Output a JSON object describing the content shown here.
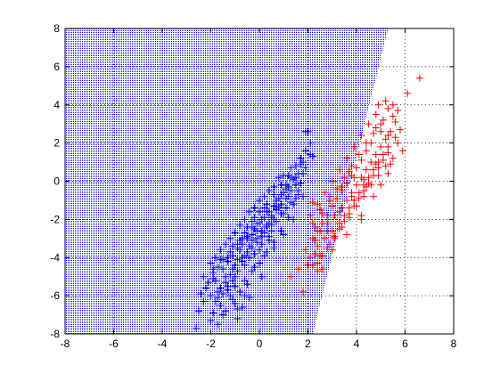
{
  "chart_data": {
    "type": "scatter",
    "title": "",
    "xlabel": "",
    "ylabel": "",
    "xlim": [
      -8,
      8
    ],
    "ylim": [
      -8,
      8
    ],
    "x_ticks": [
      -8,
      -6,
      -4,
      -2,
      0,
      2,
      4,
      6,
      8
    ],
    "y_ticks": [
      -8,
      -6,
      -4,
      -2,
      0,
      2,
      4,
      6,
      8
    ],
    "grid": true,
    "marker": "+",
    "decision_boundary": {
      "points": [
        [
          2.2,
          -7.9
        ],
        [
          5.3,
          8.0
        ]
      ],
      "region_fill": "blue-dotted",
      "region_side": "left"
    },
    "series": [
      {
        "color": "#0000ff",
        "points": [
          [
            -1.8,
            -5.2
          ],
          [
            -1.6,
            -5.6
          ],
          [
            -1.4,
            -5.0
          ],
          [
            -1.5,
            -4.6
          ],
          [
            -1.2,
            -4.9
          ],
          [
            -1.0,
            -4.4
          ],
          [
            -1.1,
            -3.9
          ],
          [
            -0.9,
            -4.1
          ],
          [
            -0.8,
            -3.6
          ],
          [
            -0.6,
            -3.9
          ],
          [
            -0.7,
            -3.3
          ],
          [
            -0.5,
            -3.0
          ],
          [
            -0.4,
            -3.4
          ],
          [
            -0.3,
            -2.8
          ],
          [
            -0.2,
            -2.5
          ],
          [
            -0.1,
            -3.0
          ],
          [
            0.0,
            -2.2
          ],
          [
            0.1,
            -2.6
          ],
          [
            0.2,
            -1.9
          ],
          [
            0.3,
            -2.3
          ],
          [
            0.4,
            -1.6
          ],
          [
            0.5,
            -1.9
          ],
          [
            0.6,
            -1.3
          ],
          [
            0.7,
            -1.5
          ],
          [
            0.8,
            -0.9
          ],
          [
            0.9,
            -1.2
          ],
          [
            1.0,
            -0.6
          ],
          [
            1.1,
            -0.9
          ],
          [
            1.2,
            -0.3
          ],
          [
            1.3,
            -0.5
          ],
          [
            1.4,
            0.1
          ],
          [
            1.5,
            -0.2
          ],
          [
            1.6,
            0.4
          ],
          [
            1.7,
            0.9
          ],
          [
            2.0,
            2.6
          ],
          [
            1.9,
            1.6
          ],
          [
            2.1,
            1.4
          ],
          [
            1.8,
            1.0
          ],
          [
            -1.3,
            -4.2
          ],
          [
            -0.9,
            -3.3
          ],
          [
            -0.6,
            -2.7
          ],
          [
            -0.3,
            -2.1
          ],
          [
            0.0,
            -1.6
          ],
          [
            0.3,
            -1.2
          ],
          [
            0.6,
            -0.7
          ],
          [
            0.9,
            -0.2
          ],
          [
            1.2,
            0.3
          ],
          [
            -1.9,
            -4.8
          ],
          [
            -1.6,
            -4.1
          ],
          [
            -1.2,
            -3.7
          ],
          [
            -0.8,
            -3.1
          ],
          [
            -0.5,
            -2.4
          ],
          [
            -0.2,
            -1.9
          ],
          [
            0.2,
            -1.4
          ],
          [
            0.5,
            -2.6
          ],
          [
            0.1,
            -3.3
          ],
          [
            -0.2,
            -3.8
          ],
          [
            -0.6,
            -4.4
          ],
          [
            -1.0,
            -5.0
          ],
          [
            0.4,
            -2.9
          ],
          [
            0.7,
            -2.1
          ],
          [
            1.0,
            -1.7
          ],
          [
            -2.6,
            -7.7
          ],
          [
            -2.0,
            -7.3
          ],
          [
            -1.9,
            -6.9
          ],
          [
            -1.5,
            -7.0
          ],
          [
            -0.7,
            -6.6
          ],
          [
            -1.1,
            -6.2
          ],
          [
            -0.8,
            -5.8
          ],
          [
            -0.5,
            -5.4
          ],
          [
            -2.0,
            -6.0
          ],
          [
            -2.2,
            -5.6
          ],
          [
            -1.7,
            -6.1
          ],
          [
            -1.3,
            -5.7
          ],
          [
            -0.4,
            -6.1
          ],
          [
            -0.9,
            -6.7
          ],
          [
            -1.6,
            -6.5
          ],
          [
            -2.1,
            -5.3
          ],
          [
            -1.7,
            -5.8
          ],
          [
            -1.0,
            -5.5
          ],
          [
            -1.4,
            -5.3
          ],
          [
            -0.3,
            -4.7
          ],
          [
            0.0,
            -4.3
          ],
          [
            0.3,
            -3.7
          ],
          [
            0.6,
            -3.2
          ],
          [
            0.9,
            -2.6
          ],
          [
            1.2,
            -1.9
          ],
          [
            1.4,
            -1.2
          ],
          [
            1.6,
            -0.7
          ],
          [
            1.7,
            -0.1
          ],
          [
            0.8,
            0.2
          ],
          [
            0.4,
            -0.5
          ],
          [
            0.0,
            -1.0
          ],
          [
            -0.4,
            -1.6
          ],
          [
            -0.8,
            -2.3
          ],
          [
            -1.2,
            -3.0
          ],
          [
            -1.6,
            -3.6
          ],
          [
            -2.0,
            -4.3
          ],
          [
            -1.8,
            -4.0
          ],
          [
            -1.4,
            -3.3
          ],
          [
            -1.0,
            -2.7
          ],
          [
            -0.6,
            -2.0
          ],
          [
            -0.2,
            -1.4
          ],
          [
            0.2,
            -0.8
          ],
          [
            0.6,
            -0.3
          ],
          [
            1.0,
            0.3
          ],
          [
            1.3,
            0.7
          ],
          [
            1.5,
            0.2
          ],
          [
            1.1,
            -0.4
          ],
          [
            0.7,
            -1.0
          ],
          [
            0.3,
            -1.6
          ],
          [
            -0.1,
            -2.2
          ],
          [
            -0.5,
            -2.9
          ],
          [
            -0.9,
            -3.5
          ],
          [
            -1.3,
            -4.0
          ],
          [
            -1.7,
            -4.5
          ],
          [
            -1.1,
            -4.6
          ],
          [
            -0.7,
            -4.0
          ],
          [
            -0.3,
            -3.5
          ],
          [
            0.1,
            -2.9
          ],
          [
            0.5,
            -2.3
          ],
          [
            0.9,
            -1.7
          ],
          [
            1.3,
            -1.1
          ],
          [
            1.6,
            -0.5
          ],
          [
            1.8,
            0.4
          ],
          [
            1.9,
            0.7
          ],
          [
            2.2,
            1.3
          ],
          [
            2.1,
            2.0
          ],
          [
            1.9,
            2.6
          ],
          [
            1.7,
            1.2
          ],
          [
            1.5,
            0.8
          ],
          [
            1.3,
            0.2
          ],
          [
            1.1,
            -0.2
          ],
          [
            0.9,
            -0.7
          ],
          [
            0.7,
            -1.3
          ],
          [
            0.5,
            -1.8
          ],
          [
            0.3,
            -2.4
          ],
          [
            0.1,
            -2.0
          ],
          [
            -0.1,
            -2.6
          ],
          [
            -0.3,
            -3.1
          ],
          [
            -0.5,
            -3.7
          ],
          [
            -0.7,
            -4.2
          ],
          [
            -0.9,
            -4.7
          ],
          [
            -1.1,
            -5.2
          ],
          [
            -1.3,
            -5.5
          ],
          [
            -1.5,
            -5.9
          ],
          [
            -1.8,
            -6.3
          ],
          [
            -1.2,
            -6.0
          ],
          [
            -0.6,
            -5.2
          ],
          [
            -0.2,
            -4.5
          ],
          [
            0.2,
            -3.9
          ],
          [
            0.6,
            -3.5
          ],
          [
            1.0,
            -2.8
          ],
          [
            1.4,
            -2.0
          ],
          [
            1.8,
            -0.8
          ],
          [
            -2.3,
            -5.0
          ],
          [
            -2.4,
            -5.9
          ],
          [
            -1.9,
            -5.1
          ],
          [
            -0.1,
            -3.2
          ],
          [
            0.4,
            -2.2
          ],
          [
            0.8,
            -1.4
          ],
          [
            1.2,
            -0.8
          ],
          [
            1.5,
            -0.9
          ],
          [
            1.1,
            -1.4
          ],
          [
            0.6,
            -2.0
          ],
          [
            0.2,
            -2.7
          ],
          [
            -0.3,
            -2.4
          ],
          [
            -0.7,
            -3.0
          ],
          [
            -1.1,
            -3.4
          ],
          [
            -1.5,
            -4.1
          ],
          [
            -1.9,
            -4.6
          ],
          [
            -0.4,
            -4.0
          ],
          [
            0.0,
            -3.6
          ],
          [
            0.4,
            -3.1
          ],
          [
            -1.4,
            -6.8
          ],
          [
            -1.0,
            -6.4
          ],
          [
            -0.6,
            -6.0
          ],
          [
            -2.3,
            -6.3
          ],
          [
            -0.9,
            -7.2
          ],
          [
            -1.7,
            -7.5
          ],
          [
            -2.5,
            -6.8
          ],
          [
            0.1,
            -5.0
          ]
        ]
      },
      {
        "color": "#ff0000",
        "points": [
          [
            2.2,
            -3.0
          ],
          [
            2.4,
            -3.4
          ],
          [
            2.5,
            -2.6
          ],
          [
            2.7,
            -3.0
          ],
          [
            2.8,
            -2.2
          ],
          [
            3.0,
            -2.6
          ],
          [
            3.1,
            -1.8
          ],
          [
            3.3,
            -2.2
          ],
          [
            3.4,
            -1.4
          ],
          [
            3.5,
            -1.8
          ],
          [
            3.6,
            -1.0
          ],
          [
            3.7,
            -1.4
          ],
          [
            3.8,
            -0.6
          ],
          [
            3.9,
            -1.0
          ],
          [
            4.0,
            -0.2
          ],
          [
            4.1,
            -0.6
          ],
          [
            4.2,
            0.2
          ],
          [
            4.3,
            -0.2
          ],
          [
            4.4,
            0.6
          ],
          [
            4.5,
            0.2
          ],
          [
            4.6,
            1.0
          ],
          [
            4.7,
            0.6
          ],
          [
            4.8,
            1.4
          ],
          [
            4.9,
            1.0
          ],
          [
            5.0,
            1.8
          ],
          [
            5.1,
            1.4
          ],
          [
            5.2,
            2.2
          ],
          [
            5.3,
            1.8
          ],
          [
            5.0,
            2.6
          ],
          [
            5.4,
            2.6
          ],
          [
            5.5,
            3.4
          ],
          [
            5.3,
            3.8
          ],
          [
            5.5,
            4.0
          ],
          [
            5.1,
            3.2
          ],
          [
            4.8,
            2.8
          ],
          [
            4.6,
            2.0
          ],
          [
            4.4,
            1.6
          ],
          [
            4.2,
            1.1
          ],
          [
            4.0,
            0.7
          ],
          [
            3.8,
            0.3
          ],
          [
            3.6,
            -0.1
          ],
          [
            3.4,
            -0.5
          ],
          [
            3.2,
            -0.9
          ],
          [
            3.0,
            -1.3
          ],
          [
            2.8,
            -1.8
          ],
          [
            2.6,
            -2.2
          ],
          [
            2.4,
            -2.6
          ],
          [
            2.3,
            -3.8
          ],
          [
            2.1,
            -4.0
          ],
          [
            2.4,
            -4.3
          ],
          [
            2.6,
            -3.9
          ],
          [
            2.9,
            -3.3
          ],
          [
            3.1,
            -2.9
          ],
          [
            3.3,
            -2.5
          ],
          [
            3.5,
            -2.1
          ],
          [
            3.7,
            -1.7
          ],
          [
            3.9,
            -1.3
          ],
          [
            4.1,
            -0.9
          ],
          [
            4.3,
            -0.5
          ],
          [
            4.5,
            -0.1
          ],
          [
            4.7,
            0.3
          ],
          [
            4.9,
            0.7
          ],
          [
            5.1,
            1.1
          ],
          [
            5.3,
            1.5
          ],
          [
            5.6,
            2.3
          ],
          [
            5.7,
            2.0
          ],
          [
            5.5,
            1.2
          ],
          [
            5.2,
            0.8
          ],
          [
            4.9,
            0.3
          ],
          [
            4.6,
            -0.2
          ],
          [
            4.3,
            -0.8
          ],
          [
            4.0,
            -1.3
          ],
          [
            3.7,
            -1.9
          ],
          [
            3.4,
            -2.4
          ],
          [
            3.1,
            -3.0
          ],
          [
            2.8,
            -3.5
          ],
          [
            2.5,
            -3.9
          ],
          [
            2.2,
            -4.4
          ],
          [
            2.6,
            -4.6
          ],
          [
            2.3,
            -2.4
          ],
          [
            2.6,
            -1.7
          ],
          [
            2.9,
            -1.0
          ],
          [
            3.2,
            -0.4
          ],
          [
            3.5,
            0.2
          ],
          [
            3.8,
            0.8
          ],
          [
            4.1,
            1.4
          ],
          [
            4.4,
            2.0
          ],
          [
            4.7,
            2.5
          ],
          [
            5.0,
            3.0
          ],
          [
            4.8,
            3.5
          ],
          [
            4.5,
            3.0
          ],
          [
            4.2,
            2.4
          ],
          [
            3.9,
            1.8
          ],
          [
            3.6,
            1.2
          ],
          [
            3.3,
            0.6
          ],
          [
            3.0,
            0.0
          ],
          [
            2.7,
            -0.6
          ],
          [
            2.4,
            -1.2
          ],
          [
            2.1,
            -1.8
          ],
          [
            2.3,
            -3.1
          ],
          [
            2.8,
            -2.6
          ],
          [
            3.3,
            -1.6
          ],
          [
            3.8,
            -0.8
          ],
          [
            4.3,
            0.1
          ],
          [
            4.8,
            0.9
          ],
          [
            5.3,
            2.4
          ],
          [
            5.6,
            3.1
          ],
          [
            5.7,
            3.7
          ],
          [
            5.2,
            4.2
          ],
          [
            4.9,
            4.0
          ],
          [
            5.8,
            2.7
          ],
          [
            5.4,
            0.9
          ],
          [
            2.0,
            -4.4
          ],
          [
            1.6,
            -4.6
          ],
          [
            1.9,
            -3.6
          ],
          [
            2.2,
            -2.2
          ],
          [
            3.0,
            -3.6
          ],
          [
            3.6,
            -2.8
          ],
          [
            4.2,
            -1.8
          ],
          [
            4.7,
            -0.8
          ],
          [
            5.0,
            -0.2
          ],
          [
            5.3,
            0.4
          ],
          [
            4.4,
            -0.3
          ],
          [
            3.9,
            0.2
          ],
          [
            3.4,
            -0.3
          ],
          [
            2.9,
            -0.8
          ],
          [
            2.5,
            -1.5
          ],
          [
            2.2,
            -1.1
          ],
          [
            6.1,
            4.6
          ],
          [
            6.6,
            5.4
          ],
          [
            1.3,
            -5.0
          ],
          [
            2.4,
            -4.7
          ],
          [
            1.8,
            -5.8
          ],
          [
            5.9,
            1.6
          ],
          [
            4.2,
            -2.0
          ],
          [
            3.7,
            0.5
          ]
        ]
      }
    ]
  }
}
